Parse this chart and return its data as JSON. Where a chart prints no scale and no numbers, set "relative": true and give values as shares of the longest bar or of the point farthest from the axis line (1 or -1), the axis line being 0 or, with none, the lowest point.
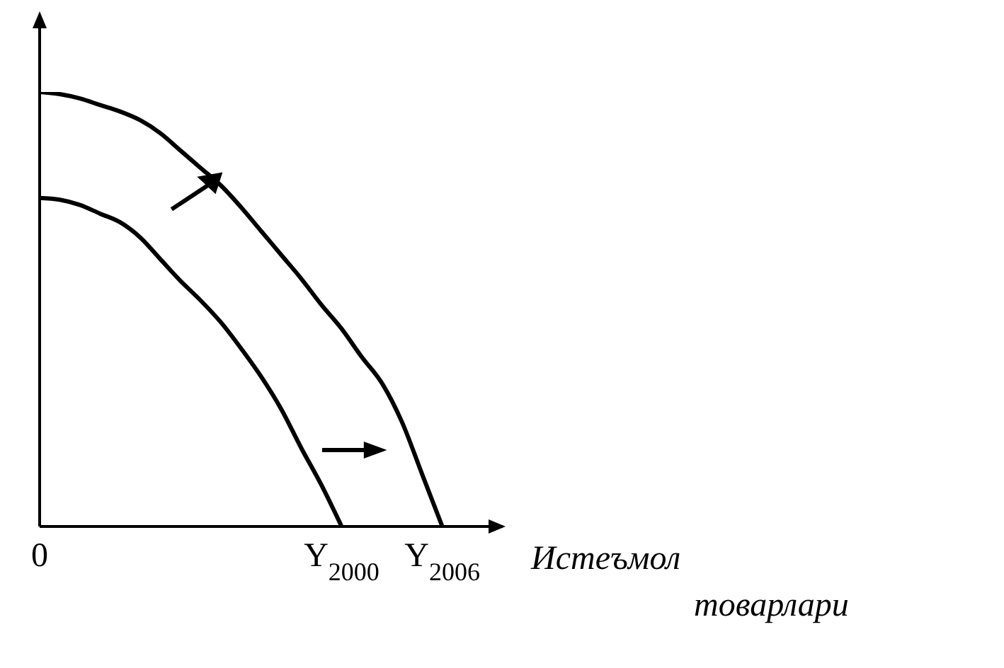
{
  "chart_data": {
    "type": "line",
    "relative": true,
    "xlabel": "Истеъмол\nтоварлари",
    "categories": [
      "0",
      null,
      null,
      null,
      null,
      null,
      null,
      null,
      null,
      null,
      null,
      null,
      null,
      null,
      null,
      "Y$_{2000}$",
      null,
      null,
      null,
      null,
      "Y$_{2006}$",
      null,
      null,
      null
    ],
    "grid": false,
    "legend": false,
    "marker": "none",
    "line_style": "solid",
    "series": [
      {
        "color": "#000000",
        "values": [
          0.756,
          0.752,
          0.74,
          0.72,
          0.7,
          0.665,
          0.615,
          0.565,
          0.52,
          0.47,
          0.41,
          0.345,
          0.27,
          0.18,
          0.095,
          0,
          null,
          null,
          null,
          null,
          null,
          null,
          null,
          null
        ]
      },
      {
        "color": "#000000",
        "values": [
          1,
          0.995,
          0.985,
          0.97,
          0.955,
          0.935,
          0.905,
          0.865,
          0.825,
          0.785,
          0.735,
          0.68,
          0.625,
          0.57,
          0.51,
          0.455,
          0.39,
          0.33,
          0.24,
          0.12,
          0,
          null,
          null,
          null
        ]
      }
    ]
  }
}
